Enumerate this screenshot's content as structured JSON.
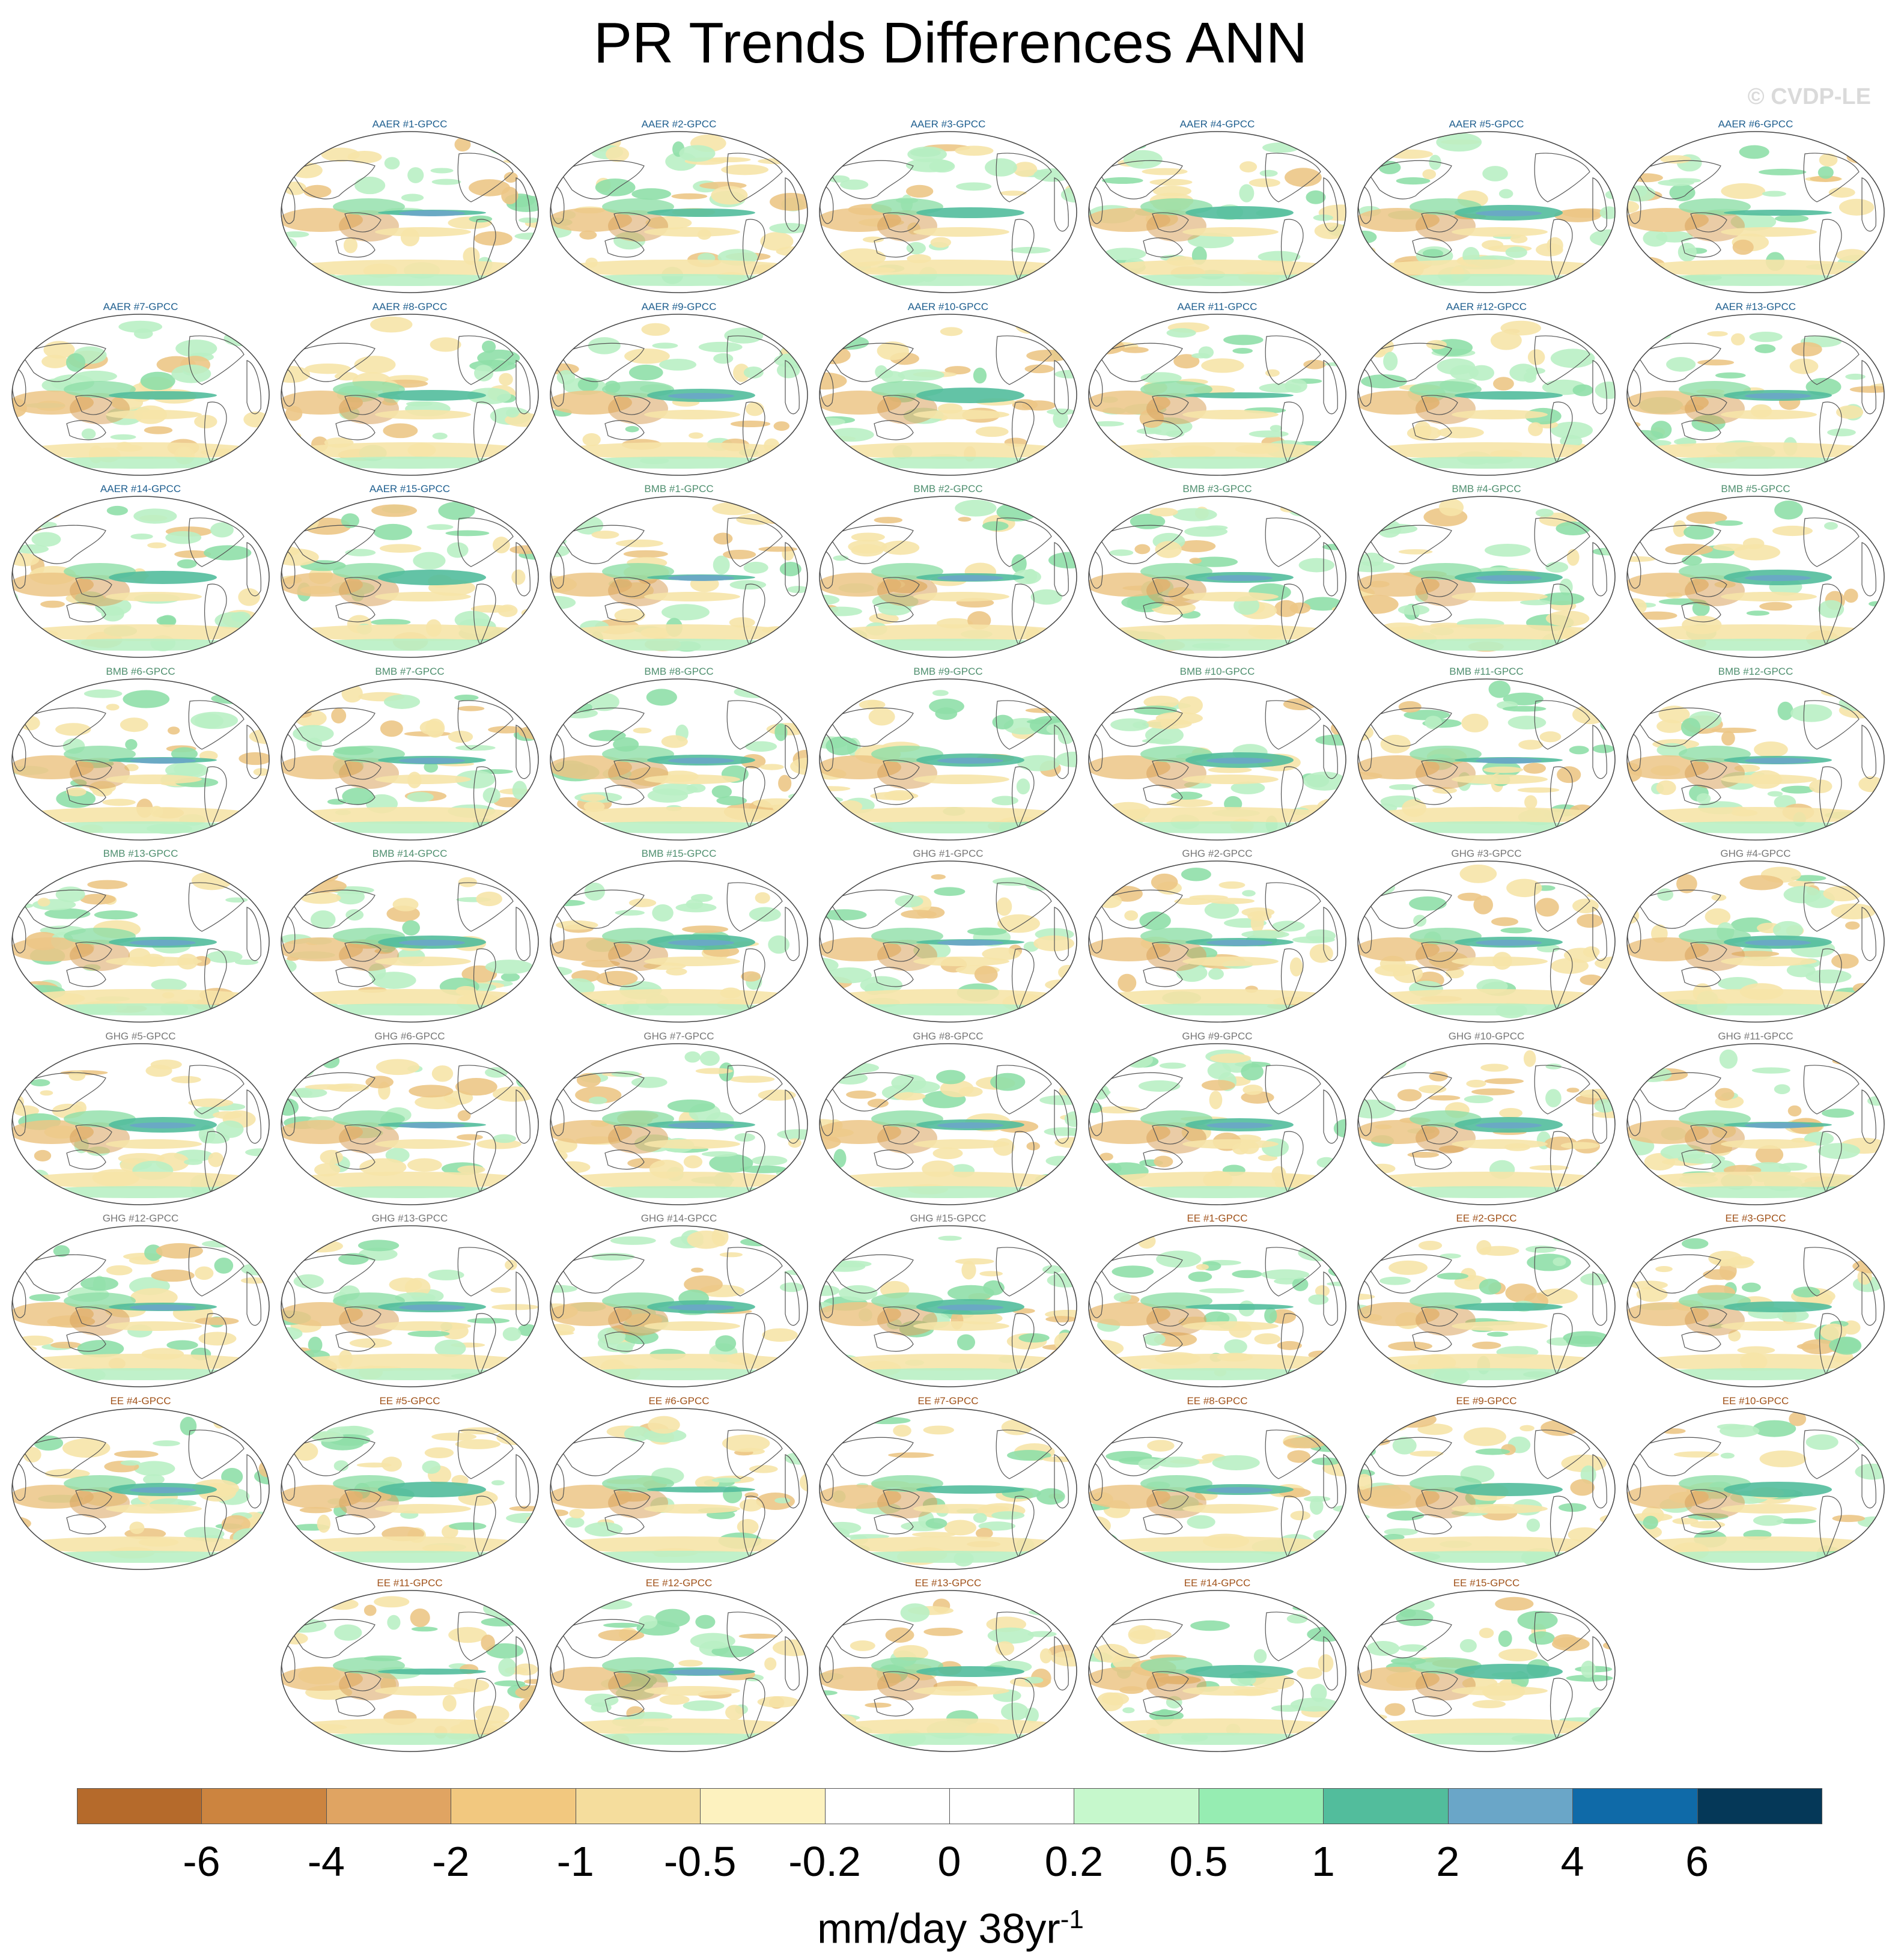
{
  "title": "PR Trends Differences ANN",
  "copyright": "© CVDP-LE",
  "units": {
    "base": "mm/day 38yr",
    "exponent": "-1"
  },
  "groups": {
    "AAER": {
      "color": "#1f5f8f",
      "count": 15
    },
    "BMB": {
      "color": "#4f8f6f",
      "count": 15
    },
    "GHG": {
      "color": "#777777",
      "count": 15
    },
    "EE": {
      "color": "#a0521a",
      "count": 15
    }
  },
  "panel_labels": [
    "AAER #1-GPCC",
    "AAER #2-GPCC",
    "AAER #3-GPCC",
    "AAER #4-GPCC",
    "AAER #5-GPCC",
    "AAER #6-GPCC",
    "AAER #7-GPCC",
    "AAER #8-GPCC",
    "AAER #9-GPCC",
    "AAER #10-GPCC",
    "AAER #11-GPCC",
    "AAER #12-GPCC",
    "AAER #13-GPCC",
    "AAER #14-GPCC",
    "AAER #15-GPCC",
    "BMB #1-GPCC",
    "BMB #2-GPCC",
    "BMB #3-GPCC",
    "BMB #4-GPCC",
    "BMB #5-GPCC",
    "BMB #6-GPCC",
    "BMB #7-GPCC",
    "BMB #8-GPCC",
    "BMB #9-GPCC",
    "BMB #10-GPCC",
    "BMB #11-GPCC",
    "BMB #12-GPCC",
    "BMB #13-GPCC",
    "BMB #14-GPCC",
    "BMB #15-GPCC",
    "GHG #1-GPCC",
    "GHG #2-GPCC",
    "GHG #3-GPCC",
    "GHG #4-GPCC",
    "GHG #5-GPCC",
    "GHG #6-GPCC",
    "GHG #7-GPCC",
    "GHG #8-GPCC",
    "GHG #9-GPCC",
    "GHG #10-GPCC",
    "GHG #11-GPCC",
    "GHG #12-GPCC",
    "GHG #13-GPCC",
    "GHG #14-GPCC",
    "GHG #15-GPCC",
    "EE #1-GPCC",
    "EE #2-GPCC",
    "EE #3-GPCC",
    "EE #4-GPCC",
    "EE #5-GPCC",
    "EE #6-GPCC",
    "EE #7-GPCC",
    "EE #8-GPCC",
    "EE #9-GPCC",
    "EE #10-GPCC",
    "EE #11-GPCC",
    "EE #12-GPCC",
    "EE #13-GPCC",
    "EE #14-GPCC",
    "EE #15-GPCC"
  ],
  "map_colors": {
    "ocean": "#ffffff",
    "coast": "#555555",
    "dry_strong": "#d9a25c",
    "dry_medium": "#ecc686",
    "dry_light": "#f6e4a8",
    "wet_light": "#b9f0c4",
    "wet_medium": "#8fdfa8",
    "wet_strong": "#52bd9c",
    "wet_blue": "#6aa6c8",
    "wet_deep": "#1b6aa5"
  },
  "colorbar": {
    "colors": [
      "#b56a2b",
      "#cc843f",
      "#e0a462",
      "#f2c87f",
      "#f5dd9d",
      "#fdf2bf",
      "#ffffff",
      "#ffffff",
      "#c6f8cc",
      "#96edb2",
      "#52bd9c",
      "#6aa6c8",
      "#0f6aa8",
      "#053858"
    ],
    "ticks": [
      "-6",
      "-4",
      "-2",
      "-1",
      "-0.5",
      "-0.2",
      "0",
      "0.2",
      "0.5",
      "1",
      "2",
      "4",
      "6"
    ]
  }
}
